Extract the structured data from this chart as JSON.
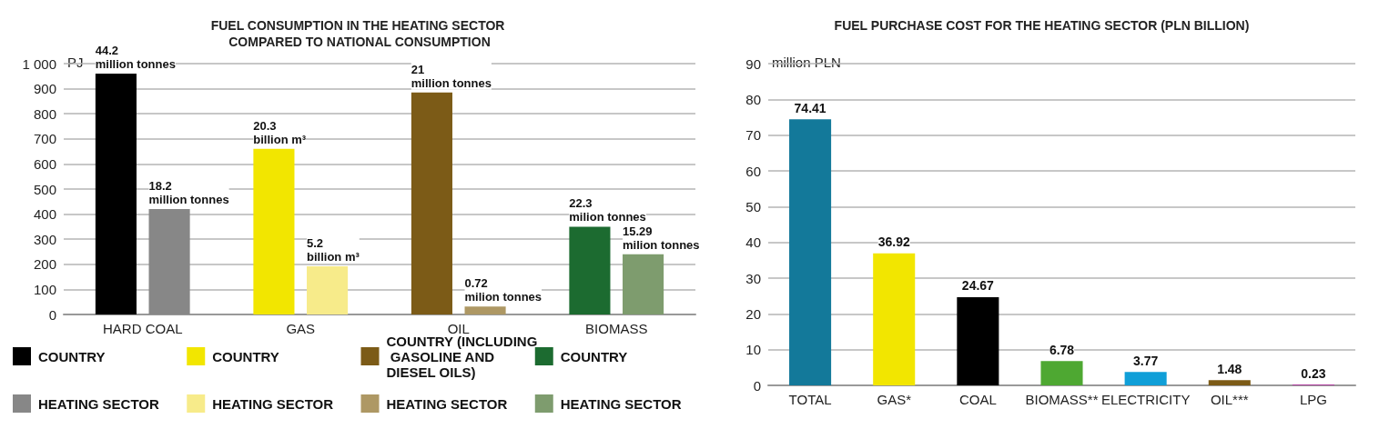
{
  "chart_data": [
    {
      "type": "bar",
      "title": "FUEL CONSUMPTION IN THE HEATING SECTOR COMPARED TO NATIONAL CONSUMPTION",
      "ylabel": "PJ",
      "categories": [
        "HARD COAL",
        "GAS",
        "OIL",
        "BIOMASS"
      ],
      "series": [
        {
          "name": "COUNTRY",
          "color": "#000000",
          "values": [
            960,
            null,
            null,
            null
          ]
        },
        {
          "name": "HEATING SECTOR",
          "color": "#878787",
          "values": [
            420,
            null,
            null,
            null
          ]
        },
        {
          "name": "COUNTRY",
          "color": "#f2e600",
          "values": [
            null,
            660,
            null,
            null
          ]
        },
        {
          "name": "HEATING SECTOR",
          "color": "#f7eb8a",
          "values": [
            null,
            192,
            null,
            null
          ]
        },
        {
          "name": "COUNTRY (INCLUDING GASOLINE AND DIESEL OILS)",
          "color": "#7c5b17",
          "values": [
            null,
            null,
            885,
            null
          ]
        },
        {
          "name": "HEATING SECTOR",
          "color": "#ae9864",
          "values": [
            null,
            null,
            32,
            null
          ]
        },
        {
          "name": "COUNTRY",
          "color": "#1c6b30",
          "values": [
            null,
            null,
            null,
            350
          ]
        },
        {
          "name": "HEATING SECTOR",
          "color": "#7e9c6e",
          "values": [
            null,
            null,
            null,
            240
          ]
        }
      ],
      "annotations": [
        "44.2 million tonnes",
        "18.2 million tonnes",
        "20.3 billion m³",
        "5.2 billion m³",
        "21 million tonnes",
        "0.72 milion tonnes",
        "22.3 milion tonnes",
        "15.29 milion tonnes"
      ],
      "ylim": [
        0,
        1000
      ],
      "yticks": [
        0,
        100,
        200,
        300,
        400,
        500,
        600,
        700,
        800,
        900,
        {
          "value": 1000,
          "label": "1 000"
        }
      ],
      "grid": "y",
      "legend": "bottom"
    },
    {
      "type": "bar",
      "title": "FUEL PURCHASE COST FOR THE HEATING SECTOR (PLN BILLION)",
      "ylabel": "million PLN",
      "categories": [
        "TOTAL",
        "GAS*",
        "COAL",
        "BIOMASS**",
        "ELECTRICITY",
        "OIL***",
        "LPG"
      ],
      "values": [
        74.41,
        36.92,
        24.67,
        6.78,
        3.77,
        1.48,
        0.23
      ],
      "colors": [
        "#13799a",
        "#f2e600",
        "#000000",
        "#4ea832",
        "#109fd8",
        "#7c5b17",
        "#b03fa0"
      ],
      "data_labels": true,
      "ylim": [
        0,
        90
      ],
      "yticks": [
        0,
        10,
        20,
        30,
        40,
        50,
        60,
        70,
        80,
        90
      ],
      "grid": "y"
    }
  ]
}
